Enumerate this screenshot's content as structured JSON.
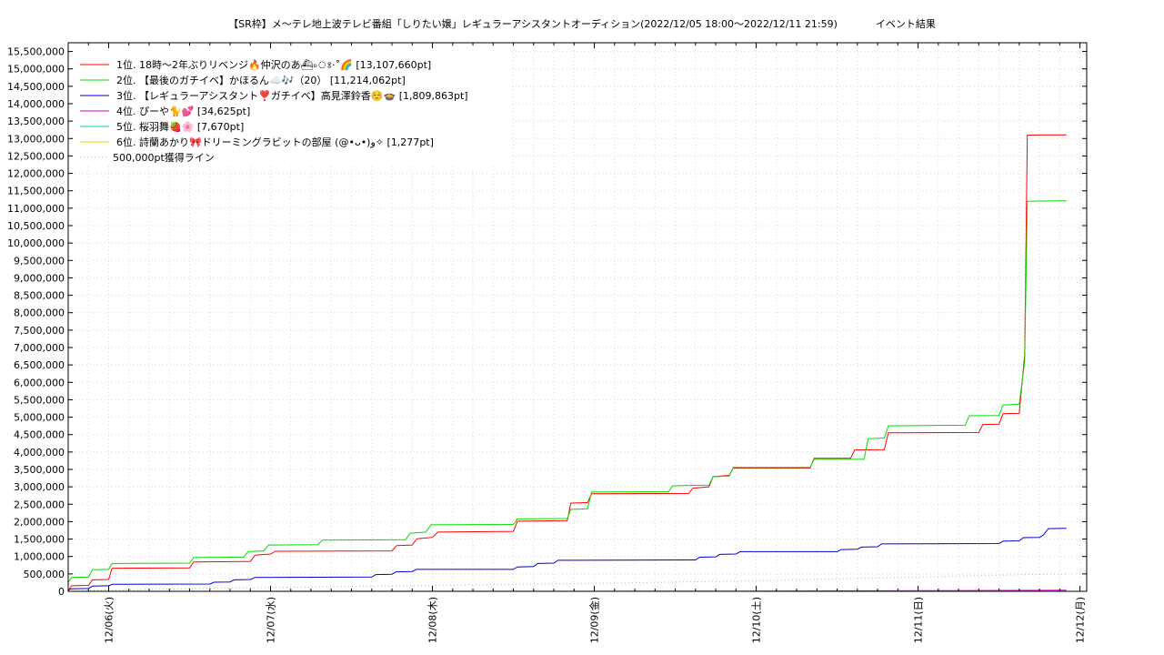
{
  "chart_data": {
    "type": "line",
    "title": "【SR枠】メ〜テレ地上波テレビ番組「しりたい嬢」レギュラーアシスタントオーディション(2022/12/05 18:00〜2022/12/11 21:59)",
    "subtitle": "イベント結果",
    "xlabel": "",
    "ylabel": "",
    "xlim": [
      "2022-12-05 18:00",
      "2022-12-12 00:00"
    ],
    "ylim": [
      0,
      15750000
    ],
    "y_ticks": [
      "0",
      "500,000",
      "1,000,000",
      "1,500,000",
      "2,000,000",
      "2,500,000",
      "3,000,000",
      "3,500,000",
      "4,000,000",
      "4,500,000",
      "5,000,000",
      "5,500,000",
      "6,000,000",
      "6,500,000",
      "7,000,000",
      "7,500,000",
      "8,000,000",
      "8,500,000",
      "9,000,000",
      "9,500,000",
      "10,000,000",
      "10,500,000",
      "11,000,000",
      "11,500,000",
      "12,000,000",
      "12,500,000",
      "13,000,000",
      "13,500,000",
      "14,000,000",
      "14,500,000",
      "15,000,000",
      "15,500,000"
    ],
    "x_ticks": [
      {
        "label": "12/06(火)",
        "hour": 6
      },
      {
        "label": "12/07(水)",
        "hour": 30
      },
      {
        "label": "12/08(木)",
        "hour": 54
      },
      {
        "label": "12/09(金)",
        "hour": 78
      },
      {
        "label": "12/10(土)",
        "hour": 102
      },
      {
        "label": "12/11(日)",
        "hour": 126
      },
      {
        "label": "12/12(月)",
        "hour": 150
      }
    ],
    "grid": true,
    "legend_position": "top-left",
    "series": [
      {
        "name": "1位. 18時〜2年ぶりリベンジ🔥仲沢のあ⛴৹ঃ·˚🌈 [13,107,660pt]",
        "color": "#ff0000",
        "style": "solid",
        "points": [
          [
            0,
            0
          ],
          [
            0.5,
            160000
          ],
          [
            3,
            170000
          ],
          [
            3.6,
            330000
          ],
          [
            6,
            340000
          ],
          [
            6.5,
            660000
          ],
          [
            18,
            670000
          ],
          [
            18.6,
            840000
          ],
          [
            27,
            860000
          ],
          [
            27.7,
            1040000
          ],
          [
            30,
            1070000
          ],
          [
            30.7,
            1150000
          ],
          [
            48,
            1160000
          ],
          [
            48.7,
            1310000
          ],
          [
            51,
            1330000
          ],
          [
            51.7,
            1510000
          ],
          [
            54,
            1550000
          ],
          [
            54.8,
            1700000
          ],
          [
            66,
            1720000
          ],
          [
            66.6,
            2010000
          ],
          [
            74,
            2030000
          ],
          [
            74.5,
            2530000
          ],
          [
            77,
            2550000
          ],
          [
            77.6,
            2800000
          ],
          [
            92,
            2810000
          ],
          [
            92.6,
            2960000
          ],
          [
            95,
            3000000
          ],
          [
            95.6,
            3290000
          ],
          [
            98,
            3330000
          ],
          [
            98.6,
            3540000
          ],
          [
            110,
            3540000
          ],
          [
            110.6,
            3820000
          ],
          [
            116,
            3820000
          ],
          [
            116.6,
            4060000
          ],
          [
            121,
            4070000
          ],
          [
            121.6,
            4550000
          ],
          [
            135,
            4560000
          ],
          [
            135.6,
            4790000
          ],
          [
            138,
            4800000
          ],
          [
            138.6,
            5100000
          ],
          [
            141,
            5110000
          ],
          [
            141.8,
            6800000
          ],
          [
            142.2,
            13100000
          ],
          [
            148,
            13107660
          ]
        ]
      },
      {
        "name": "2位. 【最後のガチイベ】かほるん☁️🎶（20） [11,214,062pt]",
        "color": "#00dd00",
        "style": "solid",
        "points": [
          [
            0,
            250000
          ],
          [
            0.5,
            400000
          ],
          [
            3,
            410000
          ],
          [
            3.6,
            620000
          ],
          [
            6,
            630000
          ],
          [
            6.5,
            800000
          ],
          [
            18,
            810000
          ],
          [
            18.6,
            970000
          ],
          [
            26,
            980000
          ],
          [
            26.7,
            1140000
          ],
          [
            29,
            1160000
          ],
          [
            29.7,
            1330000
          ],
          [
            37,
            1340000
          ],
          [
            37.7,
            1470000
          ],
          [
            50,
            1480000
          ],
          [
            50.7,
            1670000
          ],
          [
            53,
            1700000
          ],
          [
            53.8,
            1910000
          ],
          [
            66,
            1920000
          ],
          [
            66.6,
            2080000
          ],
          [
            74,
            2090000
          ],
          [
            74.5,
            2350000
          ],
          [
            77,
            2370000
          ],
          [
            77.6,
            2850000
          ],
          [
            89,
            2860000
          ],
          [
            89.6,
            3030000
          ],
          [
            95,
            3050000
          ],
          [
            95.6,
            3290000
          ],
          [
            98,
            3310000
          ],
          [
            98.6,
            3560000
          ],
          [
            110,
            3560000
          ],
          [
            110.6,
            3790000
          ],
          [
            118,
            3790000
          ],
          [
            118.6,
            4380000
          ],
          [
            121,
            4400000
          ],
          [
            121.6,
            4750000
          ],
          [
            133,
            4770000
          ],
          [
            133.6,
            5040000
          ],
          [
            138,
            5050000
          ],
          [
            138.6,
            5350000
          ],
          [
            141,
            5370000
          ],
          [
            141.8,
            6600000
          ],
          [
            142.2,
            11200000
          ],
          [
            148,
            11214062
          ]
        ]
      },
      {
        "name": "3位. 【レギュラーアシスタント❣️ガチイベ】高見澤鈴香☺️🍲 [1,809,863pt]",
        "color": "#0000cc",
        "style": "solid",
        "points": [
          [
            0,
            50000
          ],
          [
            0.5,
            70000
          ],
          [
            3,
            80000
          ],
          [
            3.6,
            150000
          ],
          [
            6,
            160000
          ],
          [
            6.5,
            200000
          ],
          [
            21,
            210000
          ],
          [
            21.6,
            260000
          ],
          [
            24,
            270000
          ],
          [
            24.6,
            330000
          ],
          [
            27,
            340000
          ],
          [
            27.7,
            400000
          ],
          [
            45,
            410000
          ],
          [
            45.6,
            480000
          ],
          [
            48,
            490000
          ],
          [
            48.6,
            560000
          ],
          [
            51,
            570000
          ],
          [
            51.6,
            630000
          ],
          [
            66,
            630000
          ],
          [
            66.6,
            700000
          ],
          [
            69,
            710000
          ],
          [
            69.6,
            800000
          ],
          [
            72,
            810000
          ],
          [
            72.6,
            890000
          ],
          [
            93,
            900000
          ],
          [
            93.6,
            980000
          ],
          [
            96,
            990000
          ],
          [
            96.6,
            1060000
          ],
          [
            99,
            1070000
          ],
          [
            99.6,
            1140000
          ],
          [
            114,
            1140000
          ],
          [
            114.6,
            1200000
          ],
          [
            117,
            1210000
          ],
          [
            117.6,
            1270000
          ],
          [
            120,
            1280000
          ],
          [
            120.6,
            1360000
          ],
          [
            138,
            1370000
          ],
          [
            138.6,
            1440000
          ],
          [
            141,
            1450000
          ],
          [
            141.6,
            1540000
          ],
          [
            144,
            1550000
          ],
          [
            144.6,
            1620000
          ],
          [
            145.3,
            1800000
          ],
          [
            148,
            1809863
          ]
        ]
      },
      {
        "name": "4位. ぴーや🐈💕 [34,625pt]",
        "color": "#cc00cc",
        "style": "solid",
        "points": [
          [
            100,
            0
          ],
          [
            110,
            10000
          ],
          [
            130,
            20000
          ],
          [
            145,
            30000
          ],
          [
            148,
            34625
          ]
        ]
      },
      {
        "name": "5位. 桜羽舞🍓🌸 [7,670pt]",
        "color": "#00cccc",
        "style": "solid",
        "points": [
          [
            0,
            0
          ],
          [
            148,
            7670
          ]
        ]
      },
      {
        "name": "6位. 詩蘭あかり🎀ドリーミングラビットの部屋 (@•ᴗ•)و✧ [1,277pt]",
        "color": "#dddd00",
        "style": "solid",
        "points": [
          [
            0,
            0
          ],
          [
            148,
            1277
          ]
        ]
      },
      {
        "name": "500,000pt獲得ライン",
        "color": "#d8a8a8",
        "style": "dotted",
        "points": [
          [
            0,
            0
          ],
          [
            6,
            40000
          ],
          [
            30,
            110000
          ],
          [
            54,
            170000
          ],
          [
            78,
            230000
          ],
          [
            102,
            300000
          ],
          [
            126,
            410000
          ],
          [
            140,
            470000
          ],
          [
            148,
            500000
          ]
        ]
      }
    ]
  }
}
